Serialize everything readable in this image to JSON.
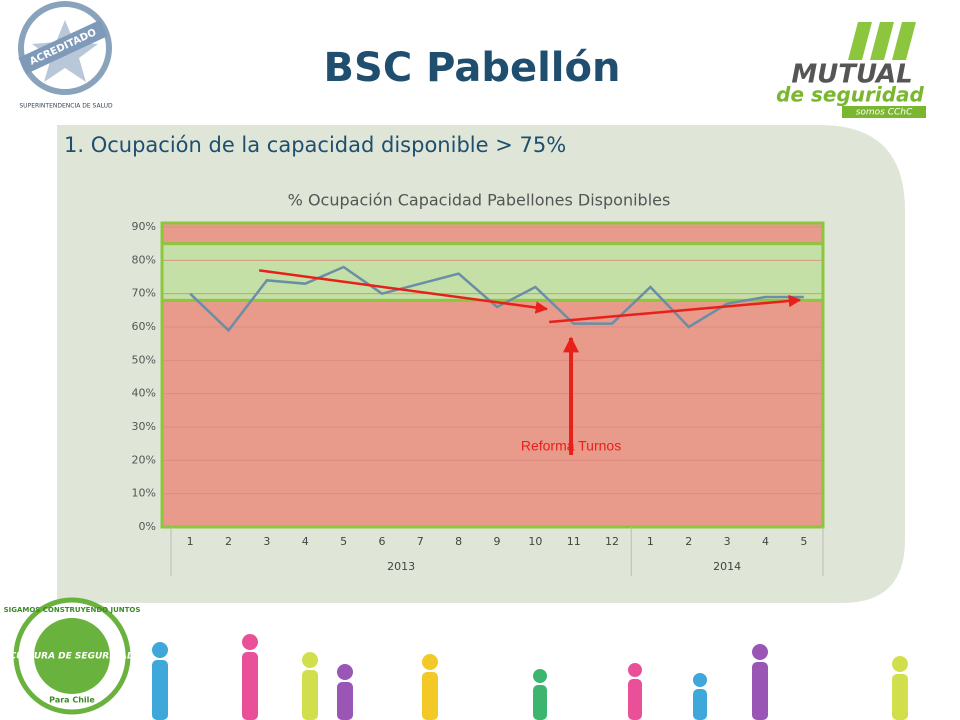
{
  "slide_title": "BSC Pabellón",
  "heading": "1. Ocupación de la capacidad disponible > 75%",
  "logos": {
    "accreditation": "ACREDITADO",
    "superintendencia": "SUPERINTENDENCIA DE SALUD",
    "mutual": "MUTUAL",
    "mutual_sub": "de seguridad",
    "mutual_tag": "somos CChC",
    "culture": "CULTURA DE SEGURIDAD",
    "culture_ring": "SIGAMOS CONSTRUYENDO JUNTOS",
    "culture_sub": "Para Chile"
  },
  "chart_data": {
    "type": "line",
    "title": "% Ocupación Capacidad Pabellones Disponibles",
    "categories": [
      "1",
      "2",
      "3",
      "4",
      "5",
      "6",
      "7",
      "8",
      "9",
      "10",
      "11",
      "12",
      "1",
      "2",
      "3",
      "4",
      "5"
    ],
    "groups": [
      {
        "label": "2013",
        "count": 12
      },
      {
        "label": "2014",
        "count": 5
      }
    ],
    "series": [
      {
        "name": "% Ocupación",
        "color": "#6b8ea6",
        "values": [
          70,
          59,
          74,
          73,
          78,
          70,
          73,
          76,
          66,
          72,
          61,
          61,
          72,
          60,
          67,
          69,
          69
        ]
      }
    ],
    "ylim": [
      0,
      90
    ],
    "yticks": [
      {
        "value": 0,
        "label": "0%"
      },
      {
        "value": 10,
        "label": "10%"
      },
      {
        "value": 20,
        "label": "20%"
      },
      {
        "value": 30,
        "label": "30%"
      },
      {
        "value": 40,
        "label": "40%"
      },
      {
        "value": 50,
        "label": "50%"
      },
      {
        "value": 60,
        "label": "60%"
      },
      {
        "value": 70,
        "label": "70%"
      },
      {
        "value": 80,
        "label": "80%"
      },
      {
        "value": 90,
        "label": "90%"
      }
    ],
    "grid": true,
    "background_color": "#e89a8b",
    "target_band": {
      "range": [
        68,
        85
      ],
      "color": "#c4e0a6"
    },
    "trend_arrows": [
      {
        "from": [
          1.8,
          77
        ],
        "to": [
          9.3,
          65.4
        ],
        "color": "#e8201a"
      },
      {
        "from": [
          9.36,
          61.5
        ],
        "to": [
          15.9,
          68.1
        ],
        "color": "#e8201a"
      }
    ],
    "annotation": {
      "text": "Reforma Turnos",
      "x": 9.93,
      "from": 21.6,
      "to": 56.7,
      "color": "#e8201a"
    }
  }
}
